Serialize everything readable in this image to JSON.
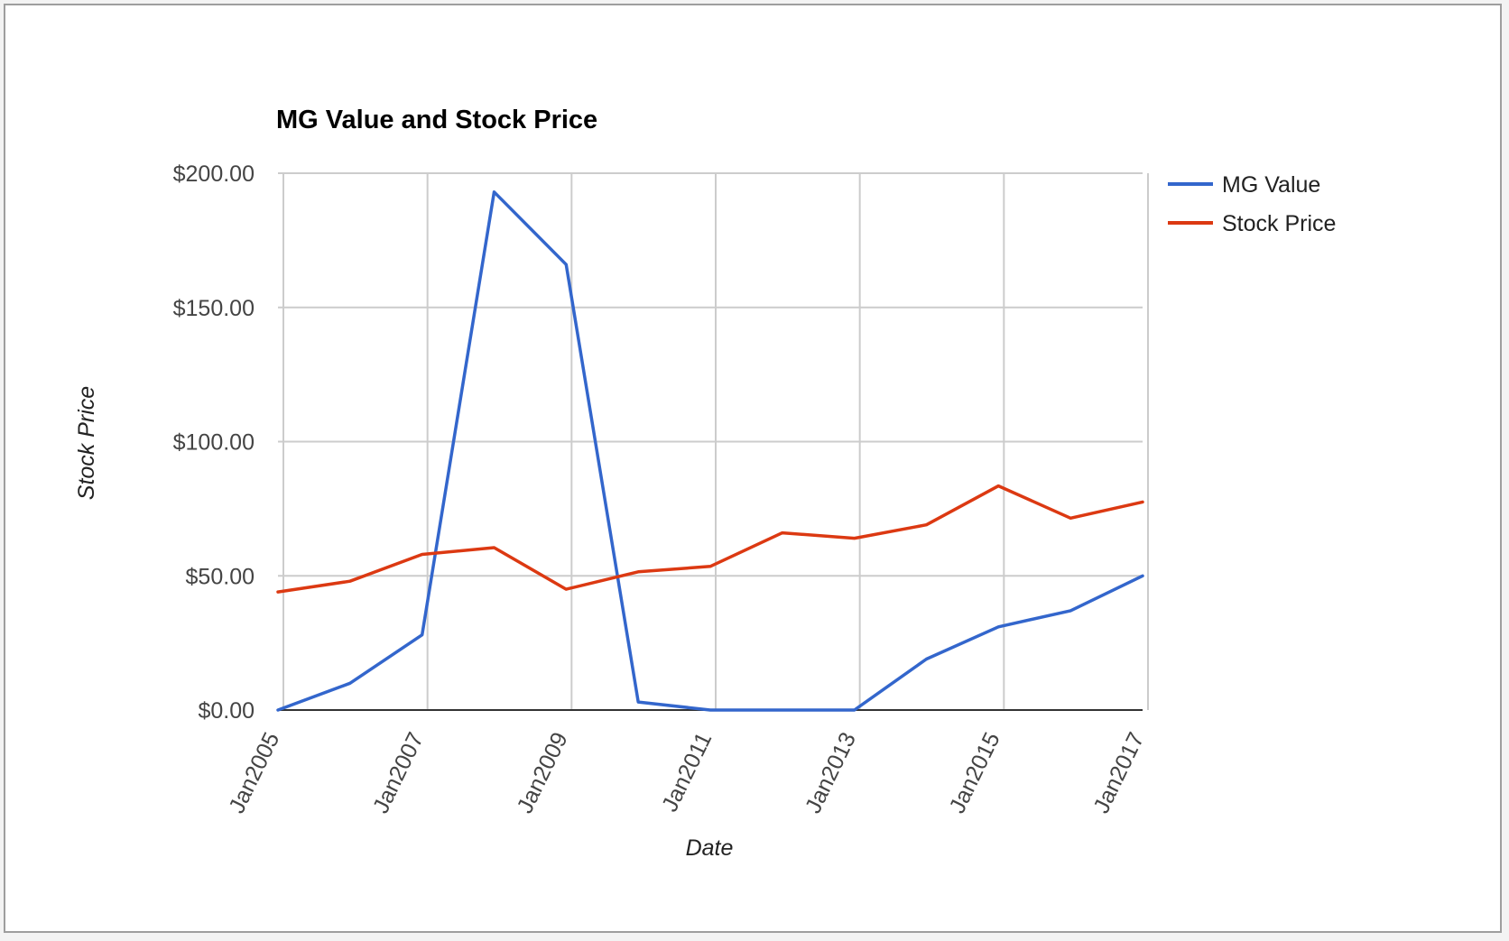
{
  "chart_data": {
    "type": "line",
    "title": "MG Value and Stock Price",
    "xlabel": "Date",
    "ylabel": "Stock Price",
    "x": [
      "2005-01",
      "2006-01",
      "2007-01",
      "2008-01",
      "2009-01",
      "2010-01",
      "2011-01",
      "2012-01",
      "2013-01",
      "2014-01",
      "2015-01",
      "2016-01",
      "2017-01"
    ],
    "x_tick_labels": [
      "Jan2005",
      "Jan2007",
      "Jan2009",
      "Jan2011",
      "Jan2013",
      "Jan2015",
      "Jan2017"
    ],
    "y_tick_labels": [
      "$0.00",
      "$50.00",
      "$100.00",
      "$150.00",
      "$200.00"
    ],
    "y_ticks": [
      0,
      50,
      100,
      150,
      200
    ],
    "ylim": [
      0,
      200
    ],
    "grid": true,
    "legend_position": "right",
    "series": [
      {
        "name": "MG Value",
        "color": "#3366cc",
        "values": [
          0,
          10,
          28,
          193,
          166,
          3,
          0,
          0,
          0,
          19,
          31,
          37,
          50
        ]
      },
      {
        "name": "Stock Price",
        "color": "#dc3912",
        "values": [
          44,
          48,
          58,
          60.5,
          45,
          51.5,
          53.5,
          66,
          64,
          69,
          83.5,
          71.5,
          77.5
        ]
      }
    ]
  }
}
